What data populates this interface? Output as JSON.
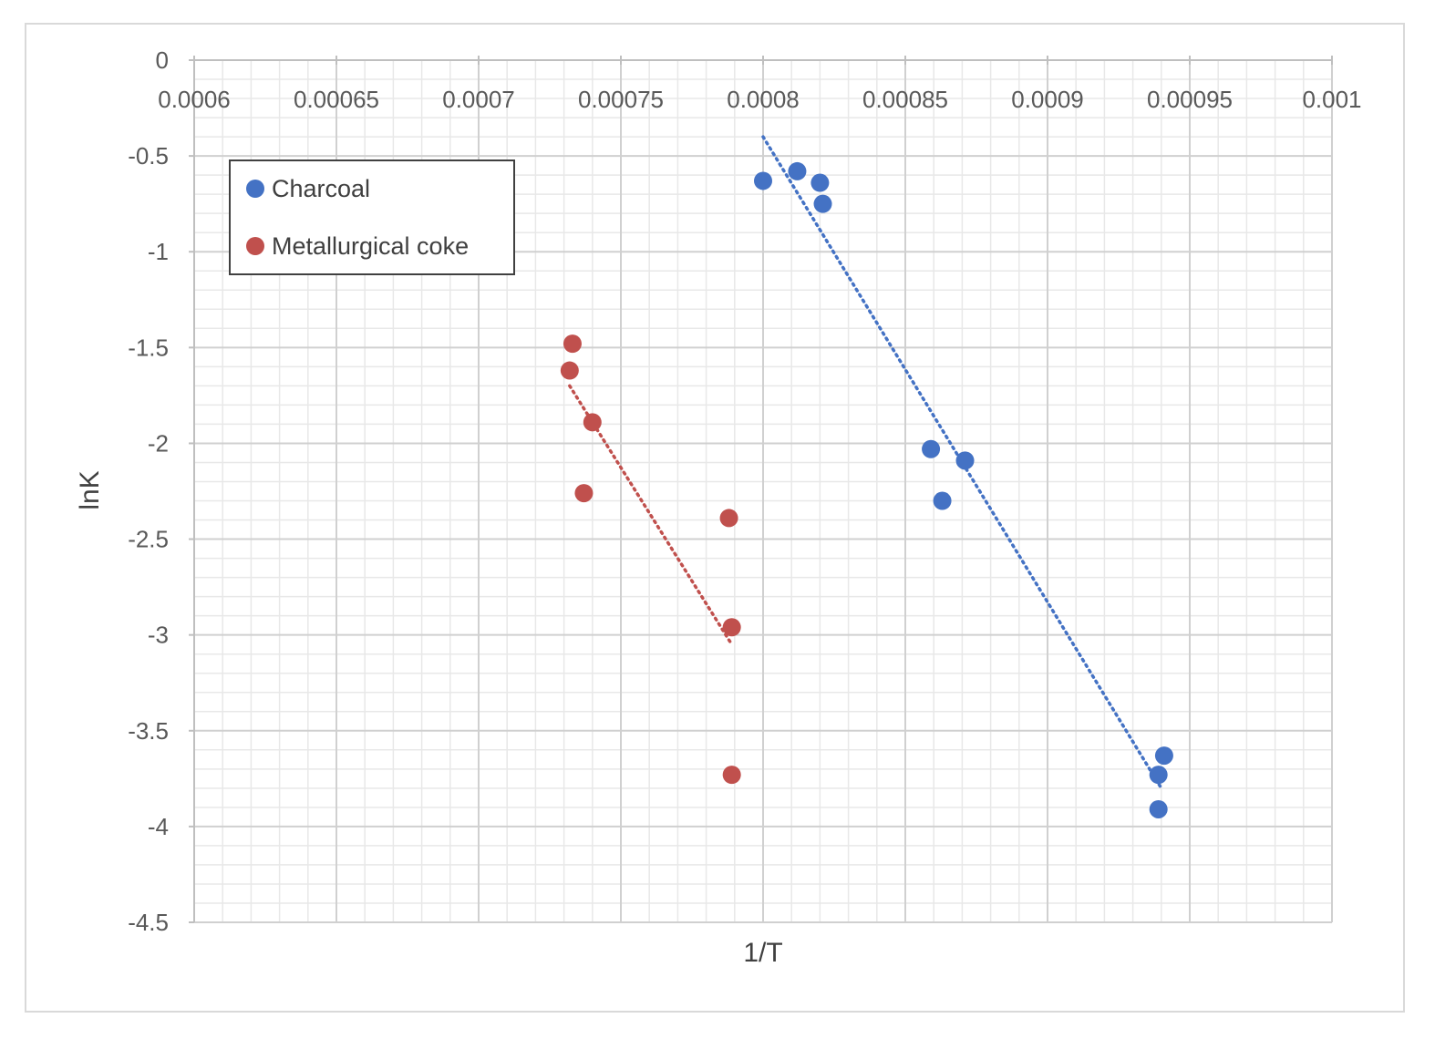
{
  "chart_data": {
    "type": "scatter",
    "xlabel": "1/T",
    "ylabel": "lnK",
    "xlim": [
      0.0006,
      0.001
    ],
    "ylim": [
      -4.5,
      0
    ],
    "x_ticks": [
      "0.0006",
      "0.00065",
      "0.0007",
      "0.00075",
      "0.0008",
      "0.00085",
      "0.0009",
      "0.00095",
      "0.001"
    ],
    "y_ticks": [
      "0",
      "-0.5",
      "-1",
      "-1.5",
      "-2",
      "-2.5",
      "-3",
      "-3.5",
      "-4",
      "-4.5"
    ],
    "x_tick_values": [
      0.0006,
      0.00065,
      0.0007,
      0.00075,
      0.0008,
      0.00085,
      0.0009,
      0.00095,
      0.001
    ],
    "y_tick_values": [
      0,
      -0.5,
      -1,
      -1.5,
      -2,
      -2.5,
      -3,
      -3.5,
      -4,
      -4.5
    ],
    "x_axis_position": "top",
    "grid": true,
    "legend_position": "top-left",
    "series": [
      {
        "name": "Charcoal",
        "color": "#4472c4",
        "points": [
          {
            "x": 0.0008,
            "y": -0.63
          },
          {
            "x": 0.000812,
            "y": -0.58
          },
          {
            "x": 0.00082,
            "y": -0.64
          },
          {
            "x": 0.000821,
            "y": -0.75
          },
          {
            "x": 0.000859,
            "y": -2.03
          },
          {
            "x": 0.000863,
            "y": -2.3
          },
          {
            "x": 0.000871,
            "y": -2.09
          },
          {
            "x": 0.000939,
            "y": -3.73
          },
          {
            "x": 0.000941,
            "y": -3.63
          },
          {
            "x": 0.000939,
            "y": -3.91
          }
        ],
        "trendline": {
          "style": "dotted",
          "x": [
            0.0008,
            0.00094
          ],
          "y": [
            -0.4,
            -3.8
          ]
        }
      },
      {
        "name": "Metallurgical coke",
        "color": "#c0504d",
        "points": [
          {
            "x": 0.000733,
            "y": -1.48
          },
          {
            "x": 0.000732,
            "y": -1.62
          },
          {
            "x": 0.00074,
            "y": -1.89
          },
          {
            "x": 0.000737,
            "y": -2.26
          },
          {
            "x": 0.000788,
            "y": -2.39
          },
          {
            "x": 0.000789,
            "y": -2.96
          },
          {
            "x": 0.000789,
            "y": -3.73
          }
        ],
        "trendline": {
          "style": "dotted",
          "x": [
            0.000732,
            0.000789
          ],
          "y": [
            -1.7,
            -3.05
          ]
        }
      }
    ]
  }
}
